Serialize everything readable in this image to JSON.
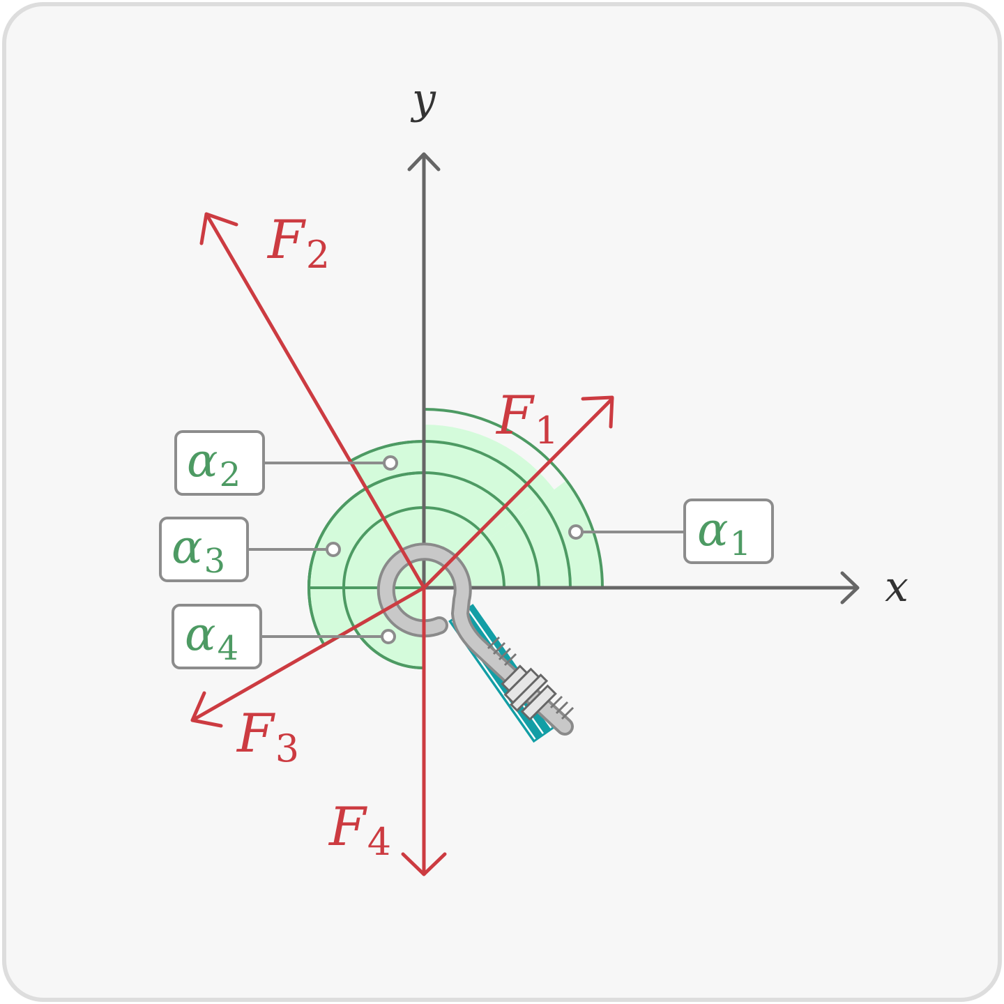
{
  "axes": {
    "x_label": "x",
    "y_label": "y",
    "color": "#666666"
  },
  "forces": [
    {
      "id": "F1",
      "symbol": "F",
      "subscript": "1",
      "angle_deg": 37
    },
    {
      "id": "F2",
      "symbol": "F",
      "subscript": "2",
      "angle_deg": 120
    },
    {
      "id": "F3",
      "symbol": "F",
      "subscript": "3",
      "angle_deg": 210
    },
    {
      "id": "F4",
      "symbol": "F",
      "subscript": "4",
      "angle_deg": 270
    }
  ],
  "angles": [
    {
      "id": "alpha1",
      "symbol": "α",
      "subscript": "1"
    },
    {
      "id": "alpha2",
      "symbol": "α",
      "subscript": "2"
    },
    {
      "id": "alpha3",
      "symbol": "α",
      "subscript": "3"
    },
    {
      "id": "alpha4",
      "symbol": "α",
      "subscript": "4"
    }
  ],
  "colors": {
    "force": "#cc3b41",
    "angle": "#4d9a63",
    "angle_fill": "#d4fbdb",
    "label_border": "#8c8c8c",
    "background": "#f7f7f7",
    "frame": "#dddddd",
    "hook": "#a6a6a6",
    "wall": "#139ea5"
  },
  "icons": [
    "eye-bolt-icon",
    "wall-hatch-icon"
  ]
}
